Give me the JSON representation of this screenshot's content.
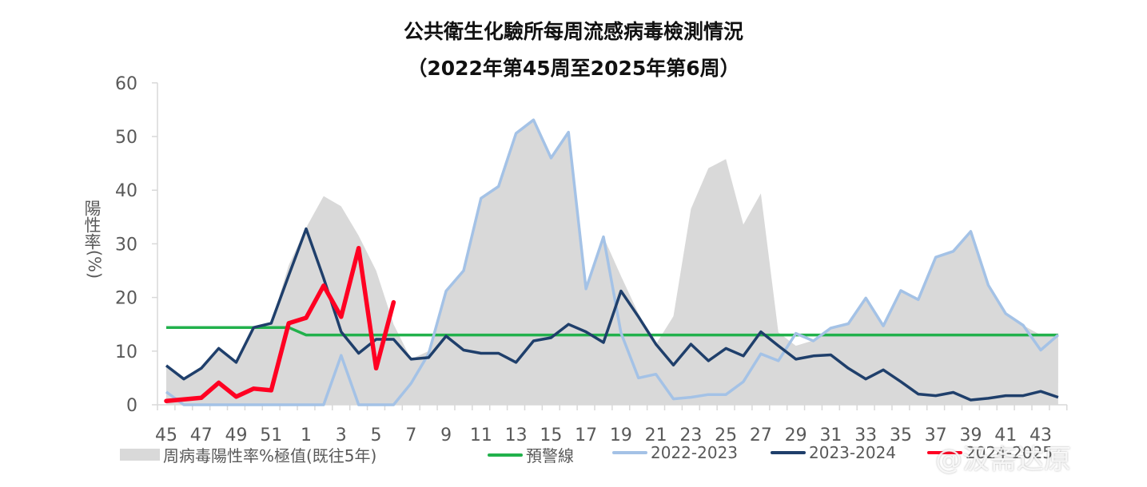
{
  "title": "公共衛生化驗所每周流感病毒檢測情況",
  "subtitle": "（2022年第45周至2025年第6周）",
  "y_axis_label": "陽性率",
  "y_axis_unit": "(%)",
  "legend": {
    "max_area": "周病毒陽性率%極值(既往5年)",
    "alert": "預警線",
    "s2022": "2022-2023",
    "s2023": "2023-2024",
    "s2024": "2024-2025"
  },
  "watermark": "@汲斋达原",
  "colors": {
    "max_area": "#d9d9d9",
    "alert": "#22b14c",
    "s2022": "#a4c2e6",
    "s2023": "#1f3f6b",
    "s2024": "#ff0022",
    "axis": "#d9d9d9",
    "text": "#595959"
  },
  "chart_data": {
    "type": "line",
    "title": "公共衛生化驗所每周流感病毒檢測情況（2022年第45周至2025年第6周）",
    "xlabel": "",
    "ylabel": "陽性率(%)",
    "ylim": [
      0,
      60
    ],
    "yticks": [
      0,
      10,
      20,
      30,
      40,
      50,
      60
    ],
    "grid": false,
    "legend_position": "bottom",
    "x": [
      45,
      46,
      47,
      48,
      49,
      50,
      51,
      52,
      1,
      2,
      3,
      4,
      5,
      6,
      7,
      8,
      9,
      10,
      11,
      12,
      13,
      14,
      15,
      16,
      17,
      18,
      19,
      20,
      21,
      22,
      23,
      24,
      25,
      26,
      27,
      28,
      29,
      30,
      31,
      32,
      33,
      34,
      35,
      36,
      37,
      38,
      39,
      40,
      41,
      42,
      43,
      44
    ],
    "xtick_labels": [
      "45",
      "47",
      "49",
      "51",
      "1",
      "3",
      "5",
      "7",
      "9",
      "11",
      "13",
      "15",
      "17",
      "19",
      "21",
      "23",
      "25",
      "27",
      "29",
      "31",
      "33",
      "35",
      "37",
      "39",
      "41",
      "43"
    ],
    "series": [
      {
        "name": "周病毒陽性率%極值(既往5年)",
        "type": "area",
        "values": [
          7.3,
          5.0,
          6.8,
          10.5,
          8.0,
          14.4,
          15.2,
          26.0,
          33.0,
          38.9,
          37.0,
          31.5,
          25.0,
          15.0,
          8.5,
          10.0,
          21.2,
          25.0,
          38.5,
          40.7,
          50.6,
          53.1,
          46.0,
          50.8,
          21.6,
          31.3,
          24.0,
          17.0,
          11.3,
          16.5,
          36.5,
          44.1,
          45.8,
          33.6,
          39.4,
          13.5,
          11.0,
          12.0,
          14.3,
          15.1,
          19.9,
          14.7,
          21.3,
          19.6,
          27.5,
          28.6,
          32.3,
          22.3,
          17.0,
          14.8,
          13.0,
          13.0
        ]
      },
      {
        "name": "預警線",
        "values": [
          14.4,
          14.4,
          14.4,
          14.4,
          14.4,
          14.4,
          14.4,
          14.4,
          13.0,
          13.0,
          13.0,
          13.0,
          13.0,
          13.0,
          13.0,
          13.0,
          13.0,
          13.0,
          13.0,
          13.0,
          13.0,
          13.0,
          13.0,
          13.0,
          13.0,
          13.0,
          13.0,
          13.0,
          13.0,
          13.0,
          13.0,
          13.0,
          13.0,
          13.0,
          13.0,
          13.0,
          13.0,
          13.0,
          13.0,
          13.0,
          13.0,
          13.0,
          13.0,
          13.0,
          13.0,
          13.0,
          13.0,
          13.0,
          13.0,
          13.0,
          13.0,
          13.0
        ]
      },
      {
        "name": "2022-2023",
        "values": [
          2.4,
          0,
          0,
          0,
          0,
          0,
          0,
          0,
          0,
          0,
          9.2,
          0,
          0,
          0,
          4.0,
          9.5,
          21.2,
          25.0,
          38.5,
          40.7,
          50.6,
          53.1,
          46.0,
          50.8,
          21.6,
          31.3,
          13.4,
          5.0,
          5.7,
          1.1,
          1.4,
          1.9,
          1.9,
          4.3,
          9.5,
          8.2,
          13.3,
          11.9,
          14.3,
          15.1,
          19.9,
          14.7,
          21.3,
          19.6,
          27.5,
          28.6,
          32.3,
          22.3,
          17.0,
          14.8,
          10.2,
          13.0
        ]
      },
      {
        "name": "2023-2024",
        "values": [
          7.3,
          4.8,
          6.8,
          10.5,
          7.9,
          14.4,
          15.2,
          24.1,
          32.8,
          23.6,
          13.6,
          9.6,
          12.2,
          12.2,
          8.5,
          8.8,
          12.8,
          10.2,
          9.6,
          9.6,
          7.9,
          11.9,
          12.5,
          15.0,
          13.6,
          11.6,
          21.2,
          16.4,
          11.3,
          7.4,
          11.3,
          8.2,
          10.5,
          9.1,
          13.6,
          11.0,
          8.5,
          9.1,
          9.3,
          6.8,
          4.8,
          6.5,
          4.3,
          2.0,
          1.7,
          2.3,
          0.9,
          1.2,
          1.7,
          1.7,
          2.5,
          1.4
        ]
      },
      {
        "name": "2024-2025",
        "values": [
          0.7,
          1.0,
          1.3,
          4.1,
          1.5,
          3.0,
          2.7,
          15.2,
          16.2,
          22.2,
          16.4,
          29.2,
          6.8,
          19.1
        ]
      }
    ]
  }
}
